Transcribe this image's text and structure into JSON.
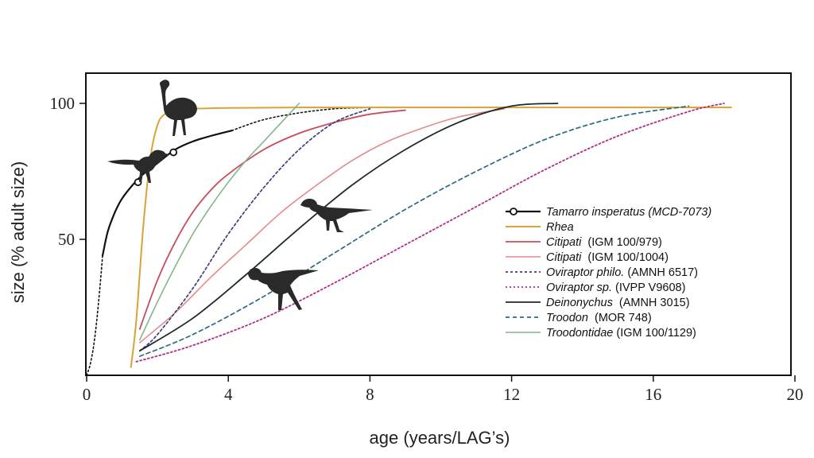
{
  "chart_data": {
    "type": "line",
    "xlabel": "age (years/LAG’s)",
    "ylabel": "size (% adult size)",
    "xlim": [
      0,
      20
    ],
    "ylim": [
      0,
      110
    ],
    "xticks": [
      0,
      4,
      8,
      12,
      16,
      20
    ],
    "xtick_labels": [
      "0",
      "4",
      "8",
      "12",
      "16",
      "20"
    ],
    "yticks": [
      50,
      100
    ],
    "ytick_labels": [
      "50",
      "100"
    ],
    "grid": false,
    "legend_position": "middle-right",
    "series": [
      {
        "key": "tamarro",
        "name_parts": [
          {
            "t": "Tamarro insperatus (MCD-7073)",
            "i": true
          }
        ],
        "color": "#111111",
        "dash": "",
        "width": 2.2,
        "markers": [
          {
            "x": 1.45,
            "y": 71
          },
          {
            "x": 2.45,
            "y": 82
          }
        ],
        "x": [
          0.45,
          0.6,
          0.8,
          1.0,
          1.3,
          1.6,
          2.0,
          2.5,
          3.0,
          3.5,
          4.1
        ],
        "values": [
          44,
          53,
          60,
          65,
          70,
          74,
          78,
          83,
          86,
          88,
          90
        ]
      },
      {
        "key": "tamarro_extrap",
        "name_parts": [],
        "color": "#111111",
        "dash": "2,3",
        "width": 1.6,
        "x": [
          0.0,
          0.1,
          0.2,
          0.3,
          0.4,
          0.45,
          4.1,
          5.0,
          6.0,
          7.0,
          8.0
        ],
        "values": [
          0,
          4,
          11,
          22,
          36,
          44,
          90,
          94,
          96.5,
          98,
          98.5
        ]
      },
      {
        "key": "rhea",
        "name_parts": [
          {
            "t": "Rhea",
            "i": true
          }
        ],
        "color": "#D8A436",
        "dash": "",
        "width": 2,
        "x": [
          1.25,
          1.4,
          1.6,
          1.8,
          2.0,
          2.2,
          2.5,
          3.0,
          4.0,
          6.0,
          10.0,
          14.0,
          18.2
        ],
        "values": [
          3,
          20,
          55,
          80,
          92,
          96,
          97.5,
          98,
          98.3,
          98.5,
          98.5,
          98.5,
          98.5
        ]
      },
      {
        "key": "citipati_979",
        "name_parts": [
          {
            "t": "Citipati",
            "i": true
          },
          {
            "t": "  (IGM 100/979)",
            "i": false
          }
        ],
        "color": "#C94C5C",
        "dash": "",
        "width": 1.8,
        "x": [
          1.5,
          2.0,
          2.5,
          3.0,
          3.5,
          4.0,
          5.0,
          6.0,
          7.0,
          8.0,
          9.0
        ],
        "values": [
          17,
          35,
          49,
          60,
          68,
          74,
          83,
          89,
          93,
          96,
          97.5
        ]
      },
      {
        "key": "citipati_1004",
        "name_parts": [
          {
            "t": "Citipati",
            "i": true
          },
          {
            "t": "  (IGM 100/1004)",
            "i": false
          }
        ],
        "color": "#E58A8A",
        "dash": "",
        "width": 1.6,
        "x": [
          1.5,
          2.5,
          3.5,
          4.5,
          5.5,
          6.5,
          7.5,
          8.5,
          9.5,
          10.5,
          11.8
        ],
        "values": [
          12,
          23,
          36,
          48,
          60,
          70,
          79,
          86,
          91,
          95,
          98
        ]
      },
      {
        "key": "oviraptor_philo",
        "name_parts": [
          {
            "t": "Oviraptor philo.",
            "i": true
          },
          {
            "t": " (AMNH 6517)",
            "i": false
          }
        ],
        "color": "#3D3F7A",
        "dash": "3,3",
        "width": 1.7,
        "x": [
          1.5,
          2.0,
          3.0,
          4.0,
          5.0,
          6.0,
          7.0,
          8.0
        ],
        "values": [
          9,
          15,
          32,
          52,
          69,
          83,
          93,
          98
        ]
      },
      {
        "key": "oviraptor_sp",
        "name_parts": [
          {
            "t": "Oviraptor sp.",
            "i": true
          },
          {
            "t": " (IVPP V9608)",
            "i": false
          }
        ],
        "color": "#B02D8A",
        "dash": "2,3",
        "width": 1.8,
        "x": [
          1.4,
          3.0,
          5.0,
          7.0,
          9.0,
          11.0,
          13.0,
          15.0,
          17.0,
          18.0
        ],
        "values": [
          5,
          11,
          21,
          34,
          48,
          62,
          76,
          88,
          97,
          100
        ]
      },
      {
        "key": "deinonychus",
        "name_parts": [
          {
            "t": "Deinonychus",
            "i": true
          },
          {
            "t": "  (AMNH 3015)",
            "i": false
          }
        ],
        "color": "#1E2A2A",
        "dash": "",
        "width": 1.8,
        "x": [
          1.5,
          3.0,
          4.5,
          6.0,
          7.5,
          9.0,
          10.5,
          12.0,
          13.3
        ],
        "values": [
          9,
          21,
          37,
          54,
          70,
          83,
          93,
          99,
          100
        ]
      },
      {
        "key": "troodon",
        "name_parts": [
          {
            "t": "Troodon",
            "i": true
          },
          {
            "t": "  (MOR 748)",
            "i": false
          }
        ],
        "color": "#2C6A80",
        "dash": "5,4",
        "width": 1.7,
        "x": [
          1.5,
          3.0,
          5.0,
          7.0,
          9.0,
          11.0,
          13.0,
          15.0,
          17.0
        ],
        "values": [
          7,
          15,
          29,
          45,
          61,
          75,
          87,
          95,
          99
        ]
      },
      {
        "key": "troodontidae",
        "name_parts": [
          {
            "t": "Troodontidae",
            "i": true
          },
          {
            "t": " (IGM 100/1129)",
            "i": false
          }
        ],
        "color": "#86B58A",
        "dash": "",
        "width": 1.6,
        "x": [
          1.5,
          2.0,
          2.5,
          3.0,
          3.5,
          4.0,
          4.5,
          5.0,
          5.5,
          6.0
        ],
        "values": [
          13,
          27,
          40,
          52,
          62,
          71,
          79,
          86,
          93,
          100
        ]
      }
    ],
    "legend_order": [
      "tamarro",
      "rhea",
      "citipati_979",
      "citipati_1004",
      "oviraptor_philo",
      "oviraptor_sp",
      "deinonychus",
      "troodon",
      "troodontidae"
    ]
  }
}
